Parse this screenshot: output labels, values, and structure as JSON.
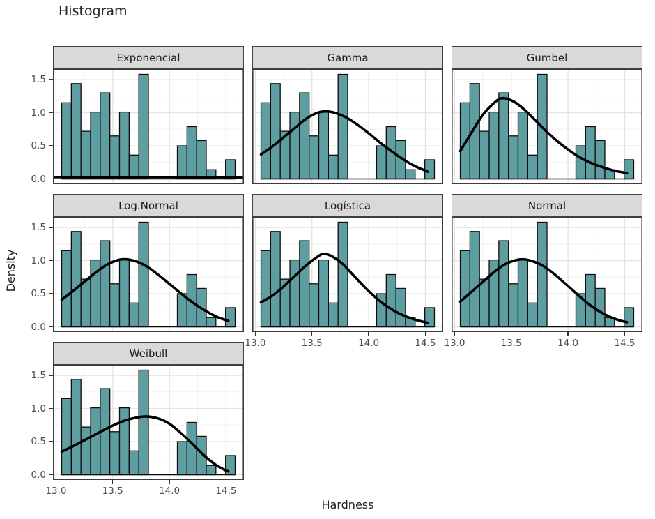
{
  "chart_data": {
    "type": "bar",
    "subtype": "faceted-histogram-with-density-curves",
    "title": "Histogram",
    "xlabel": "Hardness",
    "ylabel": "Density",
    "x_tick_labels": [
      "13.0",
      "13.5",
      "14.0",
      "14.5"
    ],
    "x_tick_values": [
      13.0,
      13.5,
      14.0,
      14.5
    ],
    "y_tick_labels": [
      "0.0",
      "0.5",
      "1.0",
      "1.5"
    ],
    "y_tick_values": [
      0.0,
      0.5,
      1.0,
      1.5
    ],
    "x_domain": [
      12.973,
      14.657
    ],
    "y_domain": [
      -0.079,
      1.659
    ],
    "x_minor_gridlines": [
      13.25,
      13.75,
      14.25
    ],
    "y_minor_gridlines": [
      0.25,
      0.75,
      1.25
    ],
    "grid": true,
    "histogram": {
      "bin_start": 13.05,
      "bin_width": 0.085,
      "densities": [
        1.15,
        1.44,
        0.72,
        1.01,
        1.3,
        0.65,
        1.01,
        0.36,
        1.58,
        0,
        0,
        0,
        0.5,
        0.79,
        0.58,
        0.14,
        0,
        0.29
      ]
    },
    "facets": [
      {
        "label": "Exponencial",
        "curve": [
          [
            12.98,
            0.028
          ],
          [
            13.5,
            0.027
          ],
          [
            14.0,
            0.026
          ],
          [
            14.65,
            0.024
          ]
        ]
      },
      {
        "label": "Gamma",
        "curve": [
          [
            13.05,
            0.37
          ],
          [
            13.15,
            0.49
          ],
          [
            13.25,
            0.63
          ],
          [
            13.35,
            0.77
          ],
          [
            13.45,
            0.91
          ],
          [
            13.55,
            1.0
          ],
          [
            13.62,
            1.02
          ],
          [
            13.7,
            1.0
          ],
          [
            13.8,
            0.93
          ],
          [
            13.9,
            0.82
          ],
          [
            14.0,
            0.69
          ],
          [
            14.1,
            0.55
          ],
          [
            14.2,
            0.42
          ],
          [
            14.3,
            0.3
          ],
          [
            14.4,
            0.2
          ],
          [
            14.52,
            0.11
          ]
        ]
      },
      {
        "label": "Gumbel",
        "curve": [
          [
            13.05,
            0.42
          ],
          [
            13.15,
            0.7
          ],
          [
            13.25,
            0.97
          ],
          [
            13.35,
            1.15
          ],
          [
            13.42,
            1.22
          ],
          [
            13.52,
            1.17
          ],
          [
            13.62,
            1.04
          ],
          [
            13.72,
            0.87
          ],
          [
            13.82,
            0.7
          ],
          [
            13.92,
            0.55
          ],
          [
            14.02,
            0.42
          ],
          [
            14.12,
            0.31
          ],
          [
            14.22,
            0.23
          ],
          [
            14.32,
            0.17
          ],
          [
            14.42,
            0.12
          ],
          [
            14.52,
            0.09
          ]
        ]
      },
      {
        "label": "Log.Normal",
        "curve": [
          [
            13.05,
            0.41
          ],
          [
            13.15,
            0.54
          ],
          [
            13.25,
            0.68
          ],
          [
            13.35,
            0.82
          ],
          [
            13.45,
            0.94
          ],
          [
            13.55,
            1.01
          ],
          [
            13.62,
            1.02
          ],
          [
            13.72,
            0.98
          ],
          [
            13.82,
            0.89
          ],
          [
            13.92,
            0.76
          ],
          [
            14.02,
            0.62
          ],
          [
            14.12,
            0.48
          ],
          [
            14.22,
            0.35
          ],
          [
            14.32,
            0.24
          ],
          [
            14.42,
            0.15
          ],
          [
            14.52,
            0.09
          ]
        ]
      },
      {
        "label": "Logística",
        "curve": [
          [
            13.05,
            0.37
          ],
          [
            13.15,
            0.47
          ],
          [
            13.25,
            0.61
          ],
          [
            13.35,
            0.77
          ],
          [
            13.45,
            0.93
          ],
          [
            13.55,
            1.06
          ],
          [
            13.6,
            1.1
          ],
          [
            13.67,
            1.07
          ],
          [
            13.77,
            0.95
          ],
          [
            13.87,
            0.77
          ],
          [
            13.97,
            0.59
          ],
          [
            14.07,
            0.43
          ],
          [
            14.17,
            0.3
          ],
          [
            14.27,
            0.2
          ],
          [
            14.37,
            0.13
          ],
          [
            14.45,
            0.09
          ],
          [
            14.52,
            0.06
          ]
        ]
      },
      {
        "label": "Normal",
        "curve": [
          [
            13.05,
            0.38
          ],
          [
            13.15,
            0.53
          ],
          [
            13.25,
            0.68
          ],
          [
            13.35,
            0.83
          ],
          [
            13.45,
            0.95
          ],
          [
            13.55,
            1.01
          ],
          [
            13.6,
            1.02
          ],
          [
            13.67,
            1.0
          ],
          [
            13.77,
            0.93
          ],
          [
            13.87,
            0.81
          ],
          [
            13.97,
            0.66
          ],
          [
            14.07,
            0.51
          ],
          [
            14.17,
            0.36
          ],
          [
            14.27,
            0.24
          ],
          [
            14.37,
            0.15
          ],
          [
            14.45,
            0.1
          ],
          [
            14.52,
            0.07
          ]
        ]
      },
      {
        "label": "Weibull",
        "curve": [
          [
            13.05,
            0.35
          ],
          [
            13.15,
            0.43
          ],
          [
            13.25,
            0.52
          ],
          [
            13.35,
            0.61
          ],
          [
            13.45,
            0.7
          ],
          [
            13.55,
            0.78
          ],
          [
            13.65,
            0.84
          ],
          [
            13.78,
            0.88
          ],
          [
            13.9,
            0.85
          ],
          [
            14.0,
            0.77
          ],
          [
            14.1,
            0.63
          ],
          [
            14.2,
            0.47
          ],
          [
            14.3,
            0.3
          ],
          [
            14.4,
            0.16
          ],
          [
            14.48,
            0.08
          ],
          [
            14.52,
            0.05
          ]
        ]
      }
    ],
    "colors": {
      "bar_fill": "#5F9EA0",
      "bar_stroke": "#0D0D0D",
      "curve": "#000000",
      "strip_bg": "#D9D9D9",
      "strip_border": "#424242",
      "panel_border": "#3C3C3C",
      "grid_major": "#E4E4E4",
      "grid_minor": "#F1F1F1",
      "tick_label": "#4D4D4D",
      "axis_title": "#1A1A1A",
      "title": "#262626",
      "panel_bg": "#FFFFFF"
    }
  }
}
